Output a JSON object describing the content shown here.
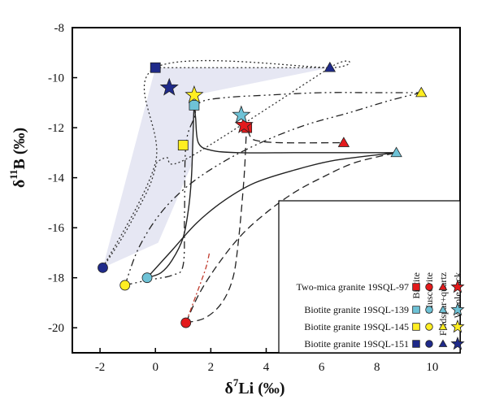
{
  "chart_data": {
    "type": "scatter",
    "xlabel": {
      "symbol": "δ",
      "sup": "7",
      "main": "Li (‰)"
    },
    "ylabel": {
      "symbol": "δ",
      "sup": "11",
      "main": "B (‰)"
    },
    "xlim": [
      -3,
      11
    ],
    "ylim": [
      -21,
      -8
    ],
    "xticks": [
      -2,
      0,
      2,
      4,
      6,
      8,
      10
    ],
    "yticks": [
      -8,
      -10,
      -12,
      -14,
      -16,
      -18,
      -20
    ],
    "legend": {
      "columns": [
        "Biotite",
        "Muscovite",
        "Feldspar+quartz",
        "Whole rock"
      ],
      "rows": [
        {
          "label": "Two-mica granite 19SQL-97",
          "color": "#e31a1c"
        },
        {
          "label": "Biotite granite 19SQL-139",
          "color": "#6ec2d6"
        },
        {
          "label": "Biotite granite 19SQL-145",
          "color": "#ffee22"
        },
        {
          "label": "Biotite granite 19SQL-151",
          "color": "#1f2a8a"
        }
      ]
    },
    "points": [
      {
        "sample": "19SQL-97",
        "mineral": "Biotite",
        "shape": "square",
        "color": "#e31a1c",
        "x": 3.3,
        "y": -12.0
      },
      {
        "sample": "19SQL-97",
        "mineral": "Muscovite",
        "shape": "circle",
        "color": "#e31a1c",
        "x": 1.1,
        "y": -19.8
      },
      {
        "sample": "19SQL-97",
        "mineral": "Feldspar+quartz",
        "shape": "triangle",
        "color": "#e31a1c",
        "x": 6.8,
        "y": -12.6
      },
      {
        "sample": "19SQL-97",
        "mineral": "Whole rock",
        "shape": "star",
        "color": "#e31a1c",
        "x": 3.2,
        "y": -11.9
      },
      {
        "sample": "19SQL-139",
        "mineral": "Biotite",
        "shape": "square",
        "color": "#6ec2d6",
        "x": 1.4,
        "y": -11.1
      },
      {
        "sample": "19SQL-139",
        "mineral": "Muscovite",
        "shape": "circle",
        "color": "#6ec2d6",
        "x": -0.3,
        "y": -18.0
      },
      {
        "sample": "19SQL-139",
        "mineral": "Feldspar+quartz",
        "shape": "triangle",
        "color": "#6ec2d6",
        "x": 8.7,
        "y": -13.0
      },
      {
        "sample": "19SQL-139",
        "mineral": "Whole rock",
        "shape": "star",
        "color": "#6ec2d6",
        "x": 3.1,
        "y": -11.5
      },
      {
        "sample": "19SQL-145",
        "mineral": "Biotite",
        "shape": "square",
        "color": "#ffee22",
        "x": 1.0,
        "y": -12.7
      },
      {
        "sample": "19SQL-145",
        "mineral": "Muscovite",
        "shape": "circle",
        "color": "#ffee22",
        "x": -1.1,
        "y": -18.3
      },
      {
        "sample": "19SQL-145",
        "mineral": "Feldspar+quartz",
        "shape": "triangle",
        "color": "#ffee22",
        "x": 9.6,
        "y": -10.6
      },
      {
        "sample": "19SQL-145",
        "mineral": "Whole rock",
        "shape": "star",
        "color": "#ffee22",
        "x": 1.4,
        "y": -10.7
      },
      {
        "sample": "19SQL-151",
        "mineral": "Biotite",
        "shape": "square",
        "color": "#1f2a8a",
        "x": 0.0,
        "y": -9.6
      },
      {
        "sample": "19SQL-151",
        "mineral": "Muscovite",
        "shape": "circle",
        "color": "#1f2a8a",
        "x": -1.9,
        "y": -17.6
      },
      {
        "sample": "19SQL-151",
        "mineral": "Feldspar+quartz",
        "shape": "triangle",
        "color": "#1f2a8a",
        "x": 6.3,
        "y": -9.6
      },
      {
        "sample": "19SQL-151",
        "mineral": "Whole rock",
        "shape": "star",
        "color": "#1f2a8a",
        "x": 0.5,
        "y": -10.4
      }
    ],
    "shaded_region": {
      "fill": "#e6e7f3",
      "x": [
        0.0,
        6.3,
        1.4,
        1.3,
        0.1,
        -1.9,
        0.0
      ],
      "y": [
        -9.6,
        -9.6,
        -10.7,
        -13.5,
        -16.6,
        -17.6,
        -9.6
      ]
    },
    "curves": [
      {
        "sample": "19SQL-151",
        "style": "dotted",
        "color": "#333333",
        "x": [
          -1.9,
          -1.2,
          -0.6,
          -0.2,
          0.0,
          0.05,
          0.4,
          1.2,
          6.3,
          6.3,
          0.0,
          0.0,
          -1.9
        ],
        "y": [
          -17.6,
          -16.4,
          -15.2,
          -14.3,
          -13.6,
          -13.4,
          -13.2,
          -13.2,
          -9.6,
          -9.6,
          -9.6,
          -13.4,
          -17.6
        ]
      },
      {
        "sample": "19SQL-151",
        "style": "dotted",
        "color": "#333333",
        "x": [
          0.0,
          6.3
        ],
        "y": [
          -9.6,
          -9.6
        ]
      },
      {
        "sample": "19SQL-139",
        "style": "solid",
        "color": "#222222",
        "x": [
          -0.3,
          0.2,
          0.6,
          1.0,
          1.2,
          1.3,
          1.35,
          1.4,
          1.45,
          1.55,
          2.0,
          3.0,
          5.0,
          7.0,
          8.7
        ],
        "y": [
          -18.0,
          -17.8,
          -17.3,
          -16.4,
          -15.2,
          -14.0,
          -12.6,
          -11.1,
          -11.6,
          -12.6,
          -12.9,
          -13.0,
          -13.0,
          -13.0,
          -13.0
        ]
      },
      {
        "sample": "19SQL-139",
        "style": "solid",
        "color": "#222222",
        "x": [
          -0.3,
          0.6,
          1.5,
          2.5,
          3.6,
          5.0,
          6.5,
          8.7
        ],
        "y": [
          -18.0,
          -16.9,
          -15.8,
          -14.9,
          -14.2,
          -13.7,
          -13.3,
          -13.0
        ]
      },
      {
        "sample": "19SQL-145",
        "style": "dashdot",
        "color": "#222222",
        "x": [
          -1.1,
          -0.3,
          0.6,
          1.0,
          1.05,
          1.1,
          1.4,
          1.6,
          2.5,
          4.0,
          6.0,
          8.0,
          9.6
        ],
        "y": [
          -18.3,
          -18.1,
          -17.9,
          -17.5,
          -15.5,
          -12.7,
          -11.6,
          -11.0,
          -10.8,
          -10.7,
          -10.6,
          -10.6,
          -10.6
        ]
      },
      {
        "sample": "19SQL-145",
        "style": "dashdot",
        "color": "#222222",
        "x": [
          -1.1,
          -0.6,
          0.2,
          1.2,
          2.4,
          3.8,
          5.4,
          7.0,
          8.5,
          9.6
        ],
        "y": [
          -18.3,
          -16.8,
          -15.4,
          -14.3,
          -13.4,
          -12.6,
          -11.9,
          -11.4,
          -10.9,
          -10.6
        ]
      },
      {
        "sample": "19SQL-97",
        "style": "dashed",
        "color": "#222222",
        "x": [
          1.1,
          1.8,
          2.4,
          2.8,
          3.0,
          3.2,
          3.3,
          3.4,
          3.6,
          4.5,
          6.8
        ],
        "y": [
          -19.8,
          -19.6,
          -19.0,
          -18.0,
          -16.5,
          -14.0,
          -12.0,
          -12.3,
          -12.5,
          -12.6,
          -12.6
        ]
      },
      {
        "sample": "19SQL-97",
        "style": "dashed",
        "color": "#222222",
        "x": [
          1.1,
          1.6,
          2.3,
          3.1,
          4.0,
          5.0,
          6.0,
          7.2,
          8.7
        ],
        "y": [
          -19.8,
          -18.6,
          -17.4,
          -16.3,
          -15.4,
          -14.6,
          -14.0,
          -13.4,
          -13.0
        ]
      },
      {
        "sample": "19SQL-97",
        "style": "dashdot-red",
        "color": "#c0392b",
        "x": [
          1.1,
          1.3,
          1.5,
          1.7,
          1.85,
          1.95
        ],
        "y": [
          -19.8,
          -19.2,
          -18.6,
          -18.0,
          -17.5,
          -17.0
        ]
      }
    ]
  }
}
